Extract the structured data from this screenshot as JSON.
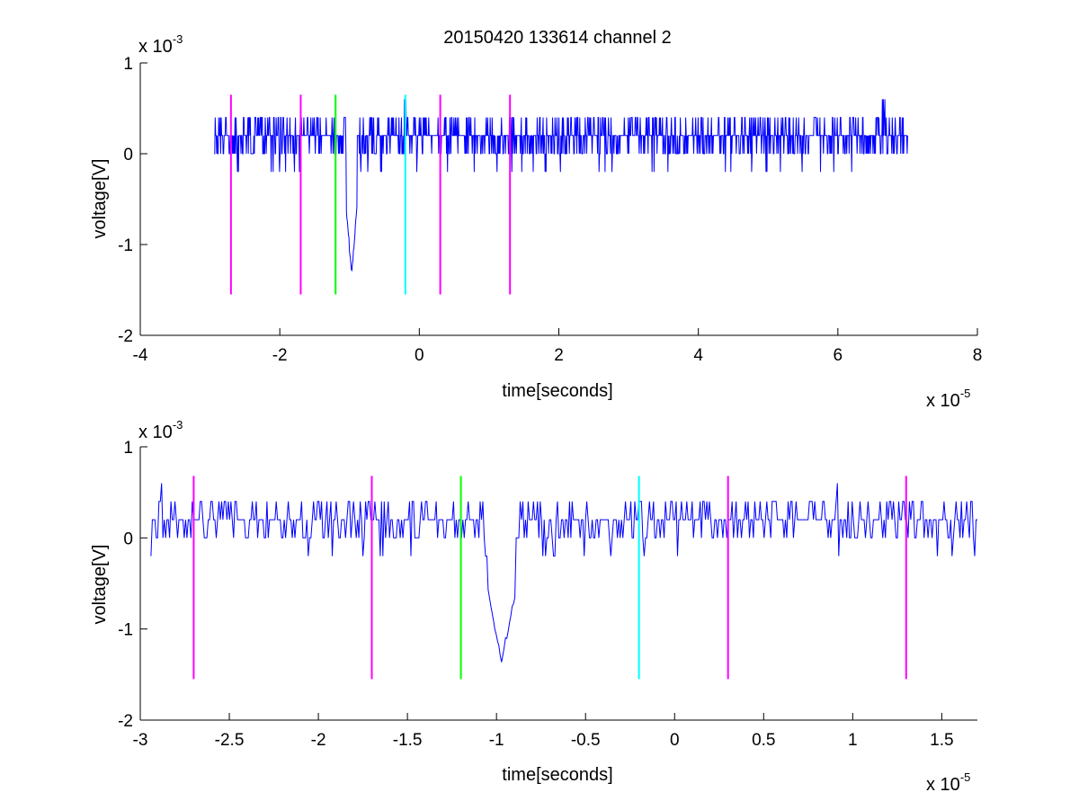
{
  "chart_data": [
    {
      "type": "line",
      "title": "20150420 133614 channel 2",
      "xlabel": "time[seconds]",
      "ylabel": "voltage[V]",
      "x_multiplier_label": "x 10",
      "x_multiplier_exp": "-5",
      "y_multiplier_label": "x 10",
      "y_multiplier_exp": "-3",
      "xlim": [
        -4,
        8
      ],
      "ylim": [
        -2,
        1
      ],
      "xticks": [
        -4,
        -2,
        0,
        2,
        4,
        6,
        8
      ],
      "xtick_labels": [
        "-4",
        "-2",
        "0",
        "2",
        "4",
        "6",
        "8"
      ],
      "yticks": [
        -2,
        -1,
        0,
        1
      ],
      "ytick_labels": [
        "-2",
        "-1",
        "0",
        "1"
      ],
      "grid": false,
      "signal": {
        "color": "#0000ff",
        "x_range": [
          -2.94,
          7.0
        ],
        "baseline": 0.2,
        "levels": [
          0.0,
          0.2,
          0.4
        ],
        "dip": {
          "x": -0.97,
          "min": -1.4
        },
        "burst": {
          "x": 6.65,
          "max": 0.6
        },
        "peak": {
          "x": -0.2,
          "max": 0.6
        }
      },
      "markers": [
        {
          "x": -2.7,
          "color": "#ff00ff",
          "ymin": -1.55,
          "ymax": 0.65
        },
        {
          "x": -1.7,
          "color": "#ff00ff",
          "ymin": -1.55,
          "ymax": 0.65
        },
        {
          "x": -1.2,
          "color": "#00ff00",
          "ymin": -1.55,
          "ymax": 0.65
        },
        {
          "x": -0.2,
          "color": "#00ffff",
          "ymin": -1.55,
          "ymax": 0.65
        },
        {
          "x": 0.3,
          "color": "#ff00ff",
          "ymin": -1.55,
          "ymax": 0.65
        },
        {
          "x": 1.3,
          "color": "#ff00ff",
          "ymin": -1.55,
          "ymax": 0.65
        }
      ]
    },
    {
      "type": "line",
      "title": "",
      "xlabel": "time[seconds]",
      "ylabel": "voltage[V]",
      "x_multiplier_label": "x 10",
      "x_multiplier_exp": "-5",
      "y_multiplier_label": "x 10",
      "y_multiplier_exp": "-3",
      "xlim": [
        -3.0,
        1.7
      ],
      "ylim": [
        -2,
        1
      ],
      "xticks": [
        -3,
        -2.5,
        -2,
        -1.5,
        -1,
        -0.5,
        0,
        0.5,
        1,
        1.5
      ],
      "xtick_labels": [
        "-3",
        "-2.5",
        "-2",
        "-1.5",
        "-1",
        "-0.5",
        "0",
        "0.5",
        "1",
        "1.5"
      ],
      "yticks": [
        -2,
        -1,
        0,
        1
      ],
      "ytick_labels": [
        "-2",
        "-1",
        "0",
        "1"
      ],
      "grid": false,
      "signal": {
        "color": "#0000ff",
        "x_range": [
          -2.94,
          1.7
        ],
        "baseline": 0.2,
        "levels": [
          0.0,
          0.2,
          0.4
        ],
        "dip": {
          "x": -0.97,
          "min": -1.4
        },
        "burst": {
          "x": -2.87,
          "max": 0.6
        },
        "peak": {
          "x": 0.92,
          "max": 0.6
        }
      },
      "markers": [
        {
          "x": -2.7,
          "color": "#ff00ff",
          "ymin": -1.55,
          "ymax": 0.68
        },
        {
          "x": -1.7,
          "color": "#ff00ff",
          "ymin": -1.55,
          "ymax": 0.68
        },
        {
          "x": -1.2,
          "color": "#00ff00",
          "ymin": -1.55,
          "ymax": 0.68
        },
        {
          "x": -0.2,
          "color": "#00ffff",
          "ymin": -1.55,
          "ymax": 0.68
        },
        {
          "x": 0.3,
          "color": "#ff00ff",
          "ymin": -1.55,
          "ymax": 0.68
        },
        {
          "x": 1.3,
          "color": "#ff00ff",
          "ymin": -1.55,
          "ymax": 0.68
        }
      ]
    }
  ]
}
